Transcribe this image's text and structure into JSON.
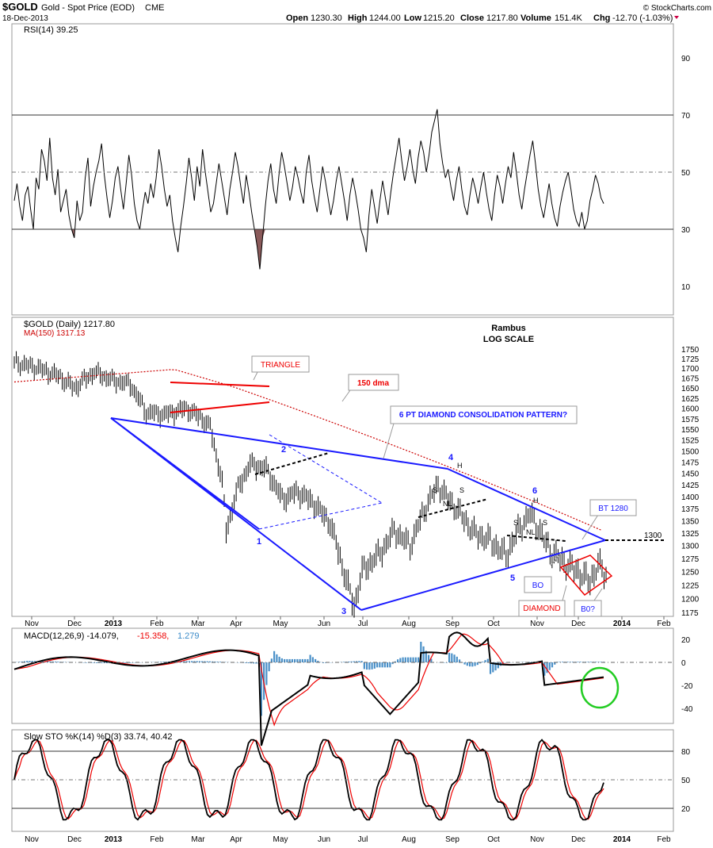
{
  "header": {
    "symbol": "$GOLD",
    "name": "Gold - Spot Price (EOD)",
    "exchange": "CME",
    "date": "18-Dec-2013",
    "open_label": "Open",
    "open": "1230.30",
    "high_label": "High",
    "high": "1244.00",
    "low_label": "Low",
    "low": "1215.20",
    "close_label": "Close",
    "close": "1217.80",
    "volume_label": "Volume",
    "volume": "151.4K",
    "chg_label": "Chg",
    "chg": "-12.70 (-1.03%)",
    "copyright": "© StockCharts.com"
  },
  "rsi": {
    "label": "RSI(14) 39.25",
    "ticks": [
      "90",
      "70",
      "50",
      "30",
      "10"
    ],
    "tick_values": [
      90,
      70,
      50,
      30,
      10
    ],
    "levels": [
      70,
      50,
      30
    ],
    "values": [
      40,
      46,
      38,
      33,
      42,
      45,
      37,
      30,
      48,
      44,
      58,
      54,
      47,
      62,
      48,
      42,
      51,
      36,
      40,
      44,
      35,
      30,
      27,
      40,
      33,
      36,
      48,
      55,
      38,
      45,
      50,
      54,
      60,
      49,
      41,
      34,
      40,
      48,
      52,
      44,
      37,
      46,
      56,
      49,
      39,
      33,
      30,
      37,
      43,
      39,
      46,
      41,
      48,
      58,
      52,
      44,
      38,
      42,
      33,
      27,
      22,
      31,
      38,
      46,
      55,
      48,
      40,
      52,
      45,
      58,
      50,
      43,
      36,
      39,
      46,
      53,
      47,
      41,
      35,
      44,
      50,
      57,
      52,
      45,
      39,
      49,
      43,
      36,
      30,
      24,
      16,
      27,
      38,
      47,
      53,
      44,
      39,
      49,
      57,
      52,
      46,
      40,
      45,
      52,
      48,
      43,
      39,
      50,
      56,
      47,
      41,
      36,
      44,
      52,
      47,
      41,
      35,
      40,
      47,
      52,
      46,
      40,
      33,
      42,
      48,
      43,
      37,
      30,
      27,
      22,
      35,
      44,
      38,
      32,
      40,
      47,
      41,
      35,
      43,
      50,
      56,
      62,
      54,
      47,
      52,
      58,
      51,
      46,
      55,
      61,
      57,
      50,
      56,
      64,
      68,
      72,
      60,
      53,
      48,
      51,
      45,
      40,
      47,
      52,
      44,
      38,
      35,
      42,
      48,
      44,
      39,
      45,
      50,
      43,
      37,
      33,
      42,
      49,
      45,
      39,
      46,
      52,
      48,
      57,
      50,
      42,
      37,
      44,
      50,
      56,
      61,
      53,
      44,
      38,
      34,
      40,
      46,
      39,
      34,
      31,
      38,
      43,
      47,
      50,
      44,
      37,
      33,
      31,
      36,
      30,
      33,
      40,
      44,
      49,
      46,
      41,
      39
    ],
    "oversold_dips": [
      [
        20,
        22
      ],
      [
        88,
        92
      ],
      [
        130,
        134
      ]
    ]
  },
  "price": {
    "label": "$GOLD (Daily) 1217.80",
    "ma_label": "MA(150) 1317.13",
    "rambus_line1": "Rambus",
    "rambus_line2": "LOG SCALE",
    "ticks": [
      "1750",
      "1725",
      "1700",
      "1675",
      "1650",
      "1625",
      "1600",
      "1575",
      "1550",
      "1525",
      "1500",
      "1475",
      "1450",
      "1425",
      "1400",
      "1375",
      "1350",
      "1325",
      "1300",
      "1275",
      "1250",
      "1225",
      "1200",
      "1175"
    ],
    "tick_values": [
      1750,
      1725,
      1700,
      1675,
      1650,
      1625,
      1600,
      1575,
      1550,
      1525,
      1500,
      1475,
      1450,
      1425,
      1400,
      1375,
      1350,
      1325,
      1300,
      1275,
      1250,
      1225,
      1200,
      1175
    ],
    "annotations": {
      "triangle": "TRIANGLE",
      "dma150": "150 dma",
      "diamond_pattern": "6 PT DIAMOND CONSOLIDATION PATTERN?",
      "bt": "BT 1280",
      "level_1300": "1300",
      "bo1": "BO",
      "bo2": "B0?",
      "diamond": "DIAMOND",
      "p1": "1",
      "p2": "2",
      "p3": "3",
      "p4": "4",
      "p5": "5",
      "p6": "6",
      "h1": "H",
      "h2": "H",
      "s1": "S",
      "s2": "S",
      "s3": "S",
      "s4": "S",
      "nl1": "NL",
      "nl2": "NL"
    }
  },
  "months": [
    "Nov",
    "Dec",
    "2013",
    "Feb",
    "Mar",
    "Apr",
    "May",
    "Jun",
    "Jul",
    "Aug",
    "Sep",
    "Oct",
    "Nov",
    "Dec",
    "2014",
    "Feb"
  ],
  "macd": {
    "label_main": "MACD(12,26,9) -14.079,",
    "label_signal": "-15.358,",
    "label_hist": "1.279",
    "ticks": [
      "20",
      "0",
      "-20",
      "-40"
    ],
    "tick_values": [
      20,
      0,
      -20,
      -40
    ]
  },
  "sto": {
    "label": "Slow STO %K(14) %D(3) 33.74, 40.42",
    "ticks": [
      "80",
      "50",
      "20"
    ],
    "tick_values": [
      80,
      50,
      20
    ]
  },
  "colors": {
    "price_series": "#000000",
    "ma": "#cc0000",
    "diamond_lines": "#1a1aff",
    "triangle_lines": "#ee0000",
    "macd_hist": "#4a90c8",
    "signal": "#ee0000",
    "oversold_fill": "#8a5a5a",
    "highlight_circle": "#22cc22"
  }
}
